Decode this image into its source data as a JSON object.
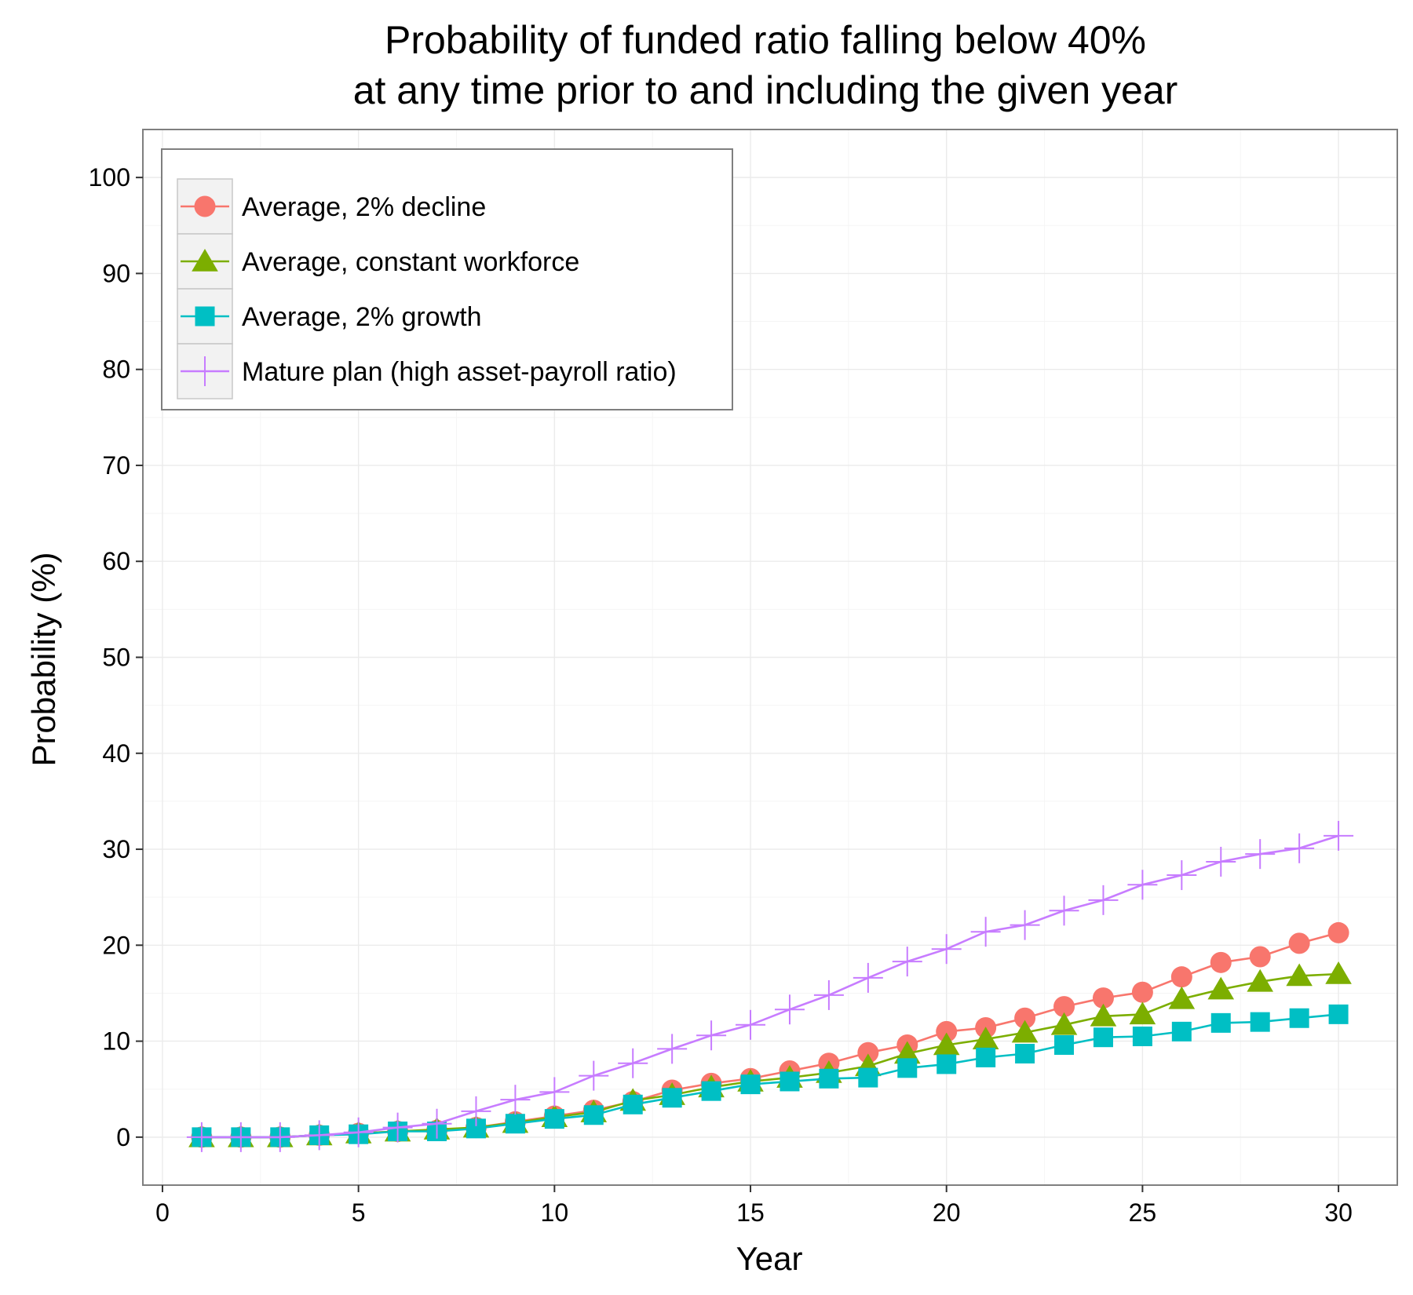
{
  "chart_data": {
    "type": "line",
    "title": "Probability of funded ratio falling below 40%",
    "subtitle": "at any time prior to and including the given year",
    "xlabel": "Year",
    "ylabel": "Probability (%)",
    "xlim": [
      -0.5,
      31.5
    ],
    "ylim": [
      -5,
      105
    ],
    "x_ticks": [
      "0",
      "5",
      "10",
      "15",
      "20",
      "25",
      "30"
    ],
    "y_ticks": [
      "0",
      "10",
      "20",
      "30",
      "40",
      "50",
      "60",
      "70",
      "80",
      "90",
      "100"
    ],
    "grid": true,
    "legend_position": "top-left",
    "x": [
      1,
      2,
      3,
      4,
      5,
      6,
      7,
      8,
      9,
      10,
      11,
      12,
      13,
      14,
      15,
      16,
      17,
      18,
      19,
      20,
      21,
      22,
      23,
      24,
      25,
      26,
      27,
      28,
      29,
      30
    ],
    "series": [
      {
        "name": "Average, 2% decline",
        "color": "#F8766D",
        "marker": "circle",
        "values": [
          0,
          0,
          0,
          0.2,
          0.4,
          0.6,
          0.7,
          1.0,
          1.6,
          2.2,
          2.8,
          3.7,
          4.9,
          5.6,
          6.1,
          6.9,
          7.7,
          8.8,
          9.6,
          11.0,
          11.4,
          12.4,
          13.6,
          14.5,
          15.1,
          16.7,
          18.2,
          18.8,
          20.2,
          21.3
        ]
      },
      {
        "name": "Average, constant workforce",
        "color": "#7CAE00",
        "marker": "triangle",
        "values": [
          0,
          0,
          0,
          0.2,
          0.4,
          0.6,
          0.8,
          1.0,
          1.5,
          2.1,
          2.6,
          3.8,
          4.4,
          5.2,
          5.8,
          6.2,
          6.7,
          7.4,
          8.7,
          9.6,
          10.2,
          10.9,
          11.7,
          12.6,
          12.8,
          14.4,
          15.4,
          16.2,
          16.8,
          17.0
        ]
      },
      {
        "name": "Average, 2% growth",
        "color": "#00BFC4",
        "marker": "square",
        "values": [
          0,
          0,
          0,
          0.2,
          0.3,
          0.6,
          0.6,
          0.9,
          1.4,
          1.9,
          2.3,
          3.4,
          4.1,
          4.8,
          5.5,
          5.8,
          6.1,
          6.2,
          7.2,
          7.6,
          8.3,
          8.7,
          9.6,
          10.4,
          10.5,
          11.0,
          11.9,
          12.0,
          12.4,
          12.8
        ]
      },
      {
        "name": "Mature plan (high asset-payroll ratio)",
        "color": "#C77CFF",
        "marker": "cross",
        "values": [
          0,
          0,
          0,
          0.2,
          0.5,
          1.0,
          1.4,
          2.7,
          3.9,
          4.7,
          6.4,
          7.7,
          9.2,
          10.6,
          11.7,
          13.3,
          14.8,
          16.6,
          18.3,
          19.6,
          21.4,
          22.1,
          23.6,
          24.7,
          26.3,
          27.3,
          28.7,
          29.5,
          30.1,
          31.4
        ]
      }
    ]
  }
}
